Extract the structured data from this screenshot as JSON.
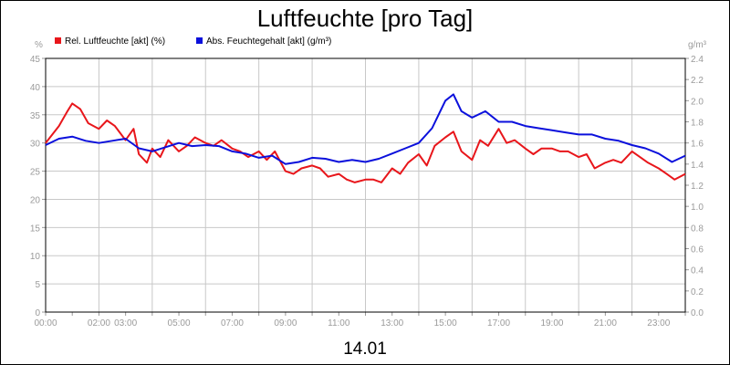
{
  "chart_data": {
    "type": "line",
    "title": "Luftfeuchte [pro Tag]",
    "subtitle": "14.01",
    "ylabel_left": "%",
    "ylabel_right": "g/m³",
    "ylim_left": [
      0,
      45
    ],
    "ylim_right": [
      0,
      2.4
    ],
    "yticks_left": [
      "0",
      "5",
      "10",
      "15",
      "20",
      "25",
      "30",
      "35",
      "40",
      "45"
    ],
    "yticks_right": [
      "0.0",
      "0.2",
      "0.4",
      "0.6",
      "0.8",
      "1.0",
      "1.2",
      "1.4",
      "1.6",
      "1.8",
      "2.0",
      "2.2",
      "2.4"
    ],
    "x_tick_labels": [
      {
        "hour": 0,
        "label": "00:00"
      },
      {
        "hour": 2,
        "label": "02:00"
      },
      {
        "hour": 3,
        "label": "03:00"
      },
      {
        "hour": 5,
        "label": "05:00"
      },
      {
        "hour": 7,
        "label": "07:00"
      },
      {
        "hour": 9,
        "label": "09:00"
      },
      {
        "hour": 11,
        "label": "11:00"
      },
      {
        "hour": 13,
        "label": "13:00"
      },
      {
        "hour": 15,
        "label": "15:00"
      },
      {
        "hour": 17,
        "label": "17:00"
      },
      {
        "hour": 19,
        "label": "19:00"
      },
      {
        "hour": 21,
        "label": "21:00"
      },
      {
        "hour": 23,
        "label": "23:00"
      }
    ],
    "grid": true,
    "legend_position": "top-left",
    "series": [
      {
        "name": "Rel. Luftfeuchte [akt] (%)",
        "axis": "left",
        "color": "#e8161b",
        "x": [
          0,
          0.5,
          0.8,
          1.0,
          1.3,
          1.6,
          2.0,
          2.3,
          2.6,
          3.0,
          3.3,
          3.5,
          3.8,
          4.0,
          4.3,
          4.6,
          5.0,
          5.3,
          5.6,
          6.0,
          6.3,
          6.6,
          7.0,
          7.3,
          7.6,
          8.0,
          8.3,
          8.6,
          9.0,
          9.3,
          9.6,
          10.0,
          10.3,
          10.6,
          11.0,
          11.3,
          11.6,
          12.0,
          12.3,
          12.6,
          13.0,
          13.3,
          13.6,
          14.0,
          14.3,
          14.6,
          15.0,
          15.3,
          15.6,
          16.0,
          16.3,
          16.6,
          17.0,
          17.3,
          17.6,
          18.0,
          18.3,
          18.6,
          19.0,
          19.3,
          19.6,
          20.0,
          20.3,
          20.6,
          21.0,
          21.3,
          21.6,
          22.0,
          22.3,
          22.6,
          23.0,
          23.3,
          23.6,
          24.0
        ],
        "values": [
          30,
          33,
          35.5,
          37,
          36,
          33.5,
          32.5,
          34,
          33,
          30.5,
          32.5,
          28,
          26.5,
          29,
          27.5,
          30.5,
          28.5,
          29.5,
          31,
          30,
          29.5,
          30.5,
          29,
          28.5,
          27.5,
          28.5,
          27,
          28.5,
          25,
          24.5,
          25.5,
          26,
          25.5,
          24,
          24.5,
          23.5,
          23,
          23.5,
          23.5,
          23,
          25.5,
          24.5,
          26.5,
          28,
          26,
          29.5,
          31,
          32,
          28.5,
          27,
          30.5,
          29.5,
          32.5,
          30,
          30.5,
          29,
          28,
          29,
          29,
          28.5,
          28.5,
          27.5,
          28,
          25.5,
          26.5,
          27,
          26.5,
          28.5,
          27.5,
          26.5,
          25.5,
          24.5,
          23.5,
          24.5
        ]
      },
      {
        "name": "Abs. Feuchtegehalt [akt] (g/m³)",
        "axis": "right",
        "color": "#0b10dc",
        "x": [
          0,
          0.5,
          1.0,
          1.5,
          2.0,
          2.5,
          3.0,
          3.5,
          4.0,
          4.5,
          5.0,
          5.5,
          6.0,
          6.5,
          7.0,
          7.5,
          8.0,
          8.5,
          9.0,
          9.5,
          10.0,
          10.5,
          11.0,
          11.5,
          12.0,
          12.5,
          13.0,
          13.5,
          14.0,
          14.5,
          15.0,
          15.3,
          15.6,
          16.0,
          16.5,
          17.0,
          17.5,
          18.0,
          18.5,
          19.0,
          19.5,
          20.0,
          20.5,
          21.0,
          21.5,
          22.0,
          22.5,
          23.0,
          23.5,
          24.0
        ],
        "values": [
          1.58,
          1.64,
          1.66,
          1.62,
          1.6,
          1.62,
          1.64,
          1.55,
          1.52,
          1.56,
          1.6,
          1.57,
          1.58,
          1.57,
          1.52,
          1.5,
          1.46,
          1.48,
          1.4,
          1.42,
          1.46,
          1.45,
          1.42,
          1.44,
          1.42,
          1.45,
          1.5,
          1.55,
          1.6,
          1.74,
          2.0,
          2.06,
          1.9,
          1.84,
          1.9,
          1.8,
          1.8,
          1.76,
          1.74,
          1.72,
          1.7,
          1.68,
          1.68,
          1.64,
          1.62,
          1.58,
          1.55,
          1.5,
          1.42,
          1.48
        ]
      }
    ]
  }
}
